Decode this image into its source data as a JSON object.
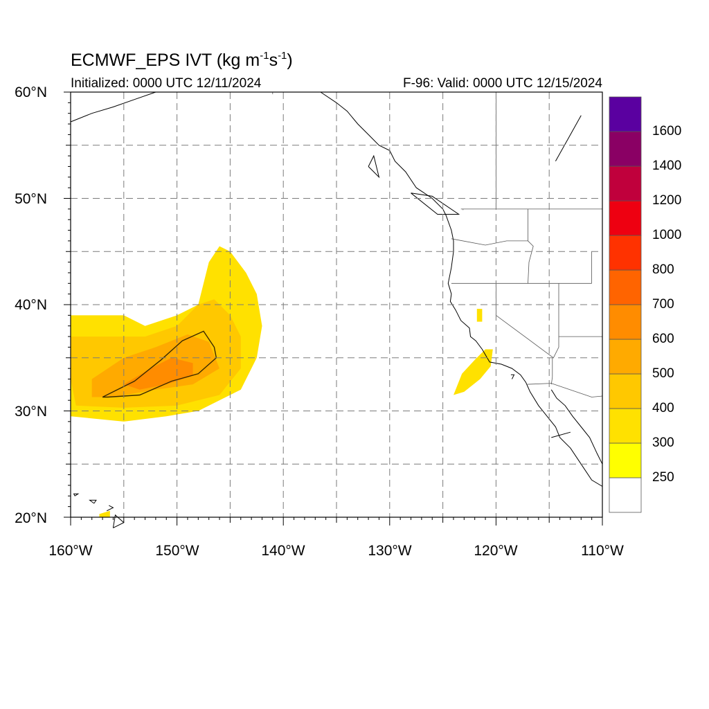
{
  "title": {
    "model": "ECMWF_EPS",
    "variable": "IVT",
    "units_base": "(kg m",
    "units_exp1": "-1",
    "units_mid": "s",
    "units_exp2": "-1",
    "units_close": ")"
  },
  "subtitle": {
    "initialized": "Initialized: 0000 UTC 12/11/2024",
    "valid": "F-96: Valid: 0000 UTC 12/15/2024"
  },
  "axes": {
    "lat_labels": [
      "20°N",
      "30°N",
      "40°N",
      "50°N",
      "60°N"
    ],
    "lat_values": [
      20,
      30,
      40,
      50,
      60
    ],
    "lon_labels": [
      "160°W",
      "150°W",
      "140°W",
      "130°W",
      "120°W",
      "110°W"
    ],
    "lon_values": [
      -160,
      -150,
      -140,
      -130,
      -120,
      -110
    ],
    "lat_range": [
      20,
      60
    ],
    "lon_range": [
      -160,
      -110
    ],
    "grid_dashed": true
  },
  "colorbar": {
    "levels": [
      "250",
      "300",
      "400",
      "500",
      "600",
      "700",
      "800",
      "1000",
      "1200",
      "1400",
      "1600"
    ],
    "colors": [
      "#ffffff",
      "#ffff00",
      "#ffe100",
      "#ffc800",
      "#ffaa00",
      "#ff8c00",
      "#ff6400",
      "#ff3200",
      "#ee0011",
      "#c0003c",
      "#8a0064",
      "#5a00a0"
    ]
  },
  "ivt_regions": [
    {
      "level": "250-300",
      "color": "#ffe100",
      "lonlat": [
        [
          -160,
          39
        ],
        [
          -155,
          39
        ],
        [
          -153,
          38
        ],
        [
          -150,
          39
        ],
        [
          -148,
          40
        ],
        [
          -147,
          44
        ],
        [
          -146,
          45.5
        ],
        [
          -145,
          45
        ],
        [
          -143.5,
          43
        ],
        [
          -142.5,
          41
        ],
        [
          -142,
          38
        ],
        [
          -142.5,
          35
        ],
        [
          -144,
          32
        ],
        [
          -148,
          30
        ],
        [
          -151,
          29.5
        ],
        [
          -155,
          29
        ],
        [
          -160,
          29.5
        ]
      ]
    },
    {
      "level": "300-400",
      "color": "#ffc800",
      "lonlat": [
        [
          -160,
          37
        ],
        [
          -156,
          37
        ],
        [
          -153,
          37
        ],
        [
          -150,
          38
        ],
        [
          -148,
          40
        ],
        [
          -146.5,
          40.5
        ],
        [
          -145,
          39
        ],
        [
          -144,
          37
        ],
        [
          -144,
          34
        ],
        [
          -146,
          31.5
        ],
        [
          -150,
          30.5
        ],
        [
          -155,
          30.3
        ],
        [
          -159.5,
          30.5
        ],
        [
          -160,
          33
        ]
      ]
    },
    {
      "level": "400-500",
      "color": "#ffaa00",
      "lonlat": [
        [
          -158,
          33
        ],
        [
          -155,
          35
        ],
        [
          -152,
          36
        ],
        [
          -149,
          37.2
        ],
        [
          -147,
          36.5
        ],
        [
          -146,
          34
        ],
        [
          -148.5,
          32.5
        ],
        [
          -152,
          32
        ],
        [
          -156,
          31.3
        ],
        [
          -158,
          31.3
        ]
      ]
    },
    {
      "level": "500-600",
      "color": "#ff8c00",
      "lonlat": [
        [
          -155,
          32.5
        ],
        [
          -152.5,
          34
        ],
        [
          -150.5,
          35
        ],
        [
          -148.5,
          34.5
        ],
        [
          -148.5,
          33.3
        ],
        [
          -151,
          32.5
        ],
        [
          -153.5,
          32
        ]
      ]
    },
    {
      "level": "250-300",
      "color": "#ffe100",
      "lonlat": [
        [
          -124,
          31.5
        ],
        [
          -123.2,
          33.5
        ],
        [
          -122,
          34.8
        ],
        [
          -121,
          35.8
        ],
        [
          -120.3,
          35.8
        ],
        [
          -120.5,
          34.2
        ],
        [
          -121.5,
          33
        ],
        [
          -123,
          31.8
        ]
      ]
    },
    {
      "level": "250-300",
      "color": "#ffe100",
      "lonlat": [
        [
          -121.8,
          39.6
        ],
        [
          -121.3,
          39.6
        ],
        [
          -121.3,
          38.4
        ],
        [
          -121.8,
          38.4
        ]
      ]
    },
    {
      "level": "250-300",
      "color": "#ffe100",
      "lonlat": [
        [
          -157.3,
          20.3
        ],
        [
          -156.3,
          20.6
        ],
        [
          -156.3,
          20
        ],
        [
          -157.3,
          20
        ]
      ]
    }
  ],
  "contour_500": [
    [
      -157,
      31.3
    ],
    [
      -154,
      32.8
    ],
    [
      -151.5,
      34.8
    ],
    [
      -149.5,
      36.6
    ],
    [
      -147.5,
      37.5
    ],
    [
      -146.5,
      36
    ],
    [
      -146.3,
      35
    ],
    [
      -148,
      33.5
    ],
    [
      -150.5,
      32.8
    ],
    [
      -153.5,
      31.5
    ],
    [
      -156.5,
      31.3
    ],
    [
      -157,
      31.3
    ]
  ],
  "coastlines": [
    [
      [
        -160,
        57.2
      ],
      [
        -158,
        58
      ],
      [
        -156,
        58.6
      ],
      [
        -154,
        59.3
      ],
      [
        -152,
        60
      ]
    ],
    [
      [
        -136.5,
        60
      ],
      [
        -135,
        59
      ],
      [
        -134,
        58.2
      ],
      [
        -133,
        57
      ],
      [
        -132,
        56
      ],
      [
        -131,
        55
      ],
      [
        -130,
        54.5
      ],
      [
        -129.5,
        53.5
      ],
      [
        -128.5,
        52.5
      ],
      [
        -127.5,
        51
      ],
      [
        -126,
        50
      ],
      [
        -125,
        49
      ],
      [
        -124.7,
        48.4
      ],
      [
        -124.2,
        47
      ],
      [
        -124,
        46
      ],
      [
        -124,
        45
      ],
      [
        -124.2,
        43.5
      ],
      [
        -124.5,
        42
      ],
      [
        -124.2,
        41
      ],
      [
        -124.3,
        40.3
      ],
      [
        -123.8,
        39.5
      ],
      [
        -123.3,
        38.5
      ],
      [
        -122.5,
        37.8
      ],
      [
        -122.4,
        37
      ],
      [
        -121.9,
        36.6
      ],
      [
        -121.3,
        35.8
      ],
      [
        -120.6,
        34.6
      ],
      [
        -119.5,
        34.4
      ],
      [
        -118.5,
        34
      ],
      [
        -117.7,
        33.4
      ],
      [
        -117.2,
        32.7
      ],
      [
        -116.8,
        31.8
      ],
      [
        -116,
        30.5
      ],
      [
        -115.2,
        29.5
      ],
      [
        -114.4,
        28.5
      ],
      [
        -114,
        27.5
      ],
      [
        -113,
        26.5
      ],
      [
        -112,
        25
      ],
      [
        -111,
        23.5
      ],
      [
        -110,
        22.9
      ]
    ],
    [
      [
        -114.8,
        32
      ],
      [
        -114.3,
        31.2
      ],
      [
        -113.5,
        30.5
      ],
      [
        -112.8,
        29.5
      ],
      [
        -112,
        28.5
      ],
      [
        -111.2,
        27.5
      ],
      [
        -110.5,
        26
      ],
      [
        -110,
        25
      ]
    ],
    [
      [
        -114.4,
        53.5
      ],
      [
        -113,
        56
      ],
      [
        -112,
        57.8
      ]
    ],
    [
      [
        -114.8,
        27.5
      ],
      [
        -113,
        28
      ]
    ]
  ],
  "borders": [
    [
      [
        -123.3,
        49
      ],
      [
        -116,
        49
      ],
      [
        -110,
        49
      ]
    ],
    [
      [
        -124.2,
        46.2
      ],
      [
        -121,
        45.6
      ],
      [
        -119,
        46
      ],
      [
        -117,
        46
      ]
    ],
    [
      [
        -124.2,
        42
      ],
      [
        -111,
        42
      ]
    ],
    [
      [
        -117,
        49
      ],
      [
        -117,
        46
      ],
      [
        -116.5,
        45.5
      ],
      [
        -116.9,
        44
      ],
      [
        -117,
        42
      ]
    ],
    [
      [
        -120,
        42
      ],
      [
        -120,
        39
      ],
      [
        -114.6,
        35
      ]
    ],
    [
      [
        -114.1,
        42
      ],
      [
        -114.1,
        36
      ],
      [
        -114.6,
        35
      ]
    ],
    [
      [
        -114.1,
        37
      ],
      [
        -110,
        37
      ]
    ],
    [
      [
        -114.7,
        35
      ],
      [
        -114.7,
        33.2
      ],
      [
        -114.8,
        32.5
      ]
    ],
    [
      [
        -117.1,
        32.5
      ],
      [
        -114.8,
        32.6
      ],
      [
        -111,
        31.3
      ],
      [
        -110,
        31.4
      ]
    ],
    [
      [
        -111,
        45
      ],
      [
        -111,
        42
      ]
    ],
    [
      [
        -141,
        60
      ],
      [
        -141,
        59.8
      ]
    ],
    [
      [
        -123.1,
        48.9
      ],
      [
        -123.1,
        49
      ]
    ],
    [
      [
        -120,
        60
      ],
      [
        -120,
        49
      ]
    ]
  ],
  "islands": [
    [
      [
        -156,
        19
      ],
      [
        -155,
        19.5
      ],
      [
        -155.8,
        20.2
      ],
      [
        -156,
        19
      ]
    ],
    [
      [
        -156.6,
        20.6
      ],
      [
        -156,
        20.9
      ],
      [
        -156.4,
        21.1
      ]
    ],
    [
      [
        -157.8,
        21.3
      ],
      [
        -157.6,
        21.6
      ],
      [
        -158.2,
        21.6
      ],
      [
        -157.8,
        21.3
      ]
    ],
    [
      [
        -159.6,
        22
      ],
      [
        -159.3,
        22.2
      ],
      [
        -159.7,
        22.2
      ],
      [
        -159.6,
        22
      ]
    ],
    [
      [
        -128,
        50.5
      ],
      [
        -125.5,
        48.5
      ],
      [
        -123.5,
        48.5
      ],
      [
        -126,
        50.2
      ],
      [
        -128,
        50.5
      ]
    ],
    [
      [
        -132,
        53
      ],
      [
        -131,
        52
      ],
      [
        -131.5,
        54
      ],
      [
        -132,
        53
      ]
    ],
    [
      [
        -118.5,
        33
      ],
      [
        -118.3,
        33.4
      ],
      [
        -118.6,
        33.4
      ]
    ]
  ]
}
